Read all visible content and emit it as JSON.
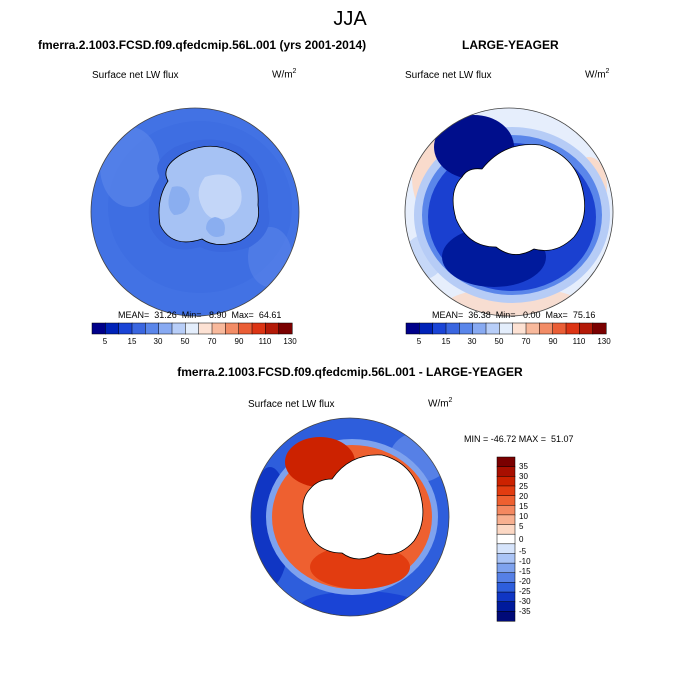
{
  "season": "JJA",
  "panels": [
    {
      "title": "fmerra.2.1003.FCSD.f09.qfedcmip.56L.001 (yrs 2001-2014)",
      "variable": "Surface net LW flux",
      "units_base": "W/m",
      "units_exp": "2",
      "stats": "MEAN=  31.26  Min=   8.90  Max=  64.61"
    },
    {
      "title": "LARGE-YEAGER",
      "variable": "Surface net LW flux",
      "units_base": "W/m",
      "units_exp": "2",
      "stats": "MEAN=  36.38  Min=   0.00  Max=  75.16"
    },
    {
      "title": "fmerra.2.1003.FCSD.f09.qfedcmip.56L.001 - LARGE-YEAGER",
      "variable": "Surface net LW flux",
      "units_base": "W/m",
      "units_exp": "2",
      "stats": "MIN = -46.72 MAX =  51.07"
    }
  ],
  "colorbar_abs": {
    "ticks": [
      "5",
      "15",
      "30",
      "50",
      "70",
      "90",
      "110",
      "130"
    ],
    "colors": [
      "#00008a",
      "#0022b8",
      "#1a44d6",
      "#3a66e0",
      "#5a86ea",
      "#88aaf2",
      "#b8cef8",
      "#e4eefc",
      "#fde2d4",
      "#f8b99c",
      "#f28c66",
      "#ea5e36",
      "#dc3414",
      "#b41a08",
      "#7a0000"
    ]
  },
  "colorbar_diff": {
    "ticks": [
      "35",
      "30",
      "25",
      "20",
      "15",
      "10",
      "5",
      "0",
      "-5",
      "-10",
      "-15",
      "-20",
      "-25",
      "-30",
      "-35"
    ],
    "colors": [
      "#7a0000",
      "#a80f00",
      "#cc2200",
      "#e23c10",
      "#ee6030",
      "#f48860",
      "#f8b090",
      "#fcd8c4",
      "#ffffff",
      "#d6e4fb",
      "#aac4f6",
      "#7ea2ee",
      "#5680e6",
      "#2e5edc",
      "#1036c4",
      "#001a9c",
      "#000a78"
    ]
  },
  "colors": {
    "antarctica_blue_land": "#a6c2f4",
    "ocean_mid": "#4a78e6",
    "land_white": "#ffffff"
  }
}
